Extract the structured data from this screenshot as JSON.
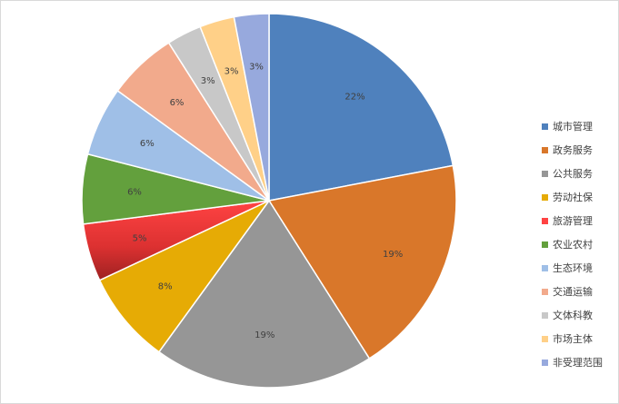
{
  "chart_data": {
    "type": "pie",
    "title": "",
    "legend": "right",
    "slices": [
      {
        "label": "城市管理",
        "value": 22,
        "display": "22%",
        "color": "#4f81bd"
      },
      {
        "label": "政务服务",
        "value": 19,
        "display": "19%",
        "color": "#d9772a"
      },
      {
        "label": "公共服务",
        "value": 19,
        "display": "19%",
        "color": "#969696"
      },
      {
        "label": "劳动社保",
        "value": 8,
        "display": "8%",
        "color": "#e6ab05"
      },
      {
        "label": "旅游管理",
        "value": 5,
        "display": "5%",
        "color": "#ff4343"
      },
      {
        "label": "农业农村",
        "value": 6,
        "display": "6%",
        "color": "#63a03d"
      },
      {
        "label": "生态环境",
        "value": 6,
        "display": "6%",
        "color": "#9fbfe7"
      },
      {
        "label": "交通运输",
        "value": 6,
        "display": "6%",
        "color": "#f2aa8c"
      },
      {
        "label": "文体科教",
        "value": 3,
        "display": "3%",
        "color": "#c8c8c8"
      },
      {
        "label": "市场主体",
        "value": 3,
        "display": "3%",
        "color": "#ffd088"
      },
      {
        "label": "非受理范围",
        "value": 3,
        "display": "3%",
        "color": "#97a9dd"
      }
    ]
  }
}
